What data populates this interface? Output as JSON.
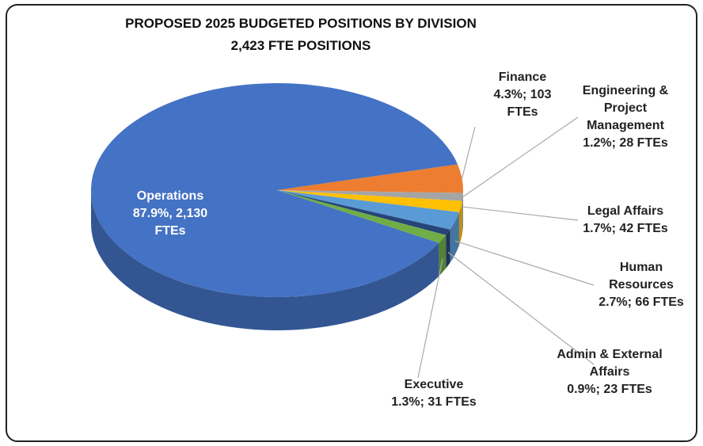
{
  "chart_data": {
    "type": "pie3d",
    "title": "PROPOSED 2025 BUDGETED POSITIONS BY DIVISION",
    "subtitle": "2,423 FTE POSITIONS",
    "categories": [
      "Finance",
      "Engineering & Project Management",
      "Legal Affairs",
      "Human Resources",
      "Admin & External Affairs",
      "Executive",
      "Operations"
    ],
    "values": [
      4.3,
      1.2,
      1.7,
      2.7,
      0.9,
      1.3,
      87.9
    ],
    "ftes": [
      103,
      28,
      42,
      66,
      23,
      31,
      2130
    ],
    "value_labels": [
      "4.3%; 103 FTEs",
      "1.2%; 28 FTEs",
      "1.7%; 42 FTEs",
      "2.7%; 66 FTEs",
      "0.9%; 23 FTEs",
      "1.3%; 31 FTEs",
      "87.9%, 2,130 FTEs"
    ],
    "colors": [
      "#ed7d31",
      "#a5a5a5",
      "#ffc000",
      "#5b9bd5",
      "#264478",
      "#70ad47",
      "#4472c4"
    ]
  }
}
